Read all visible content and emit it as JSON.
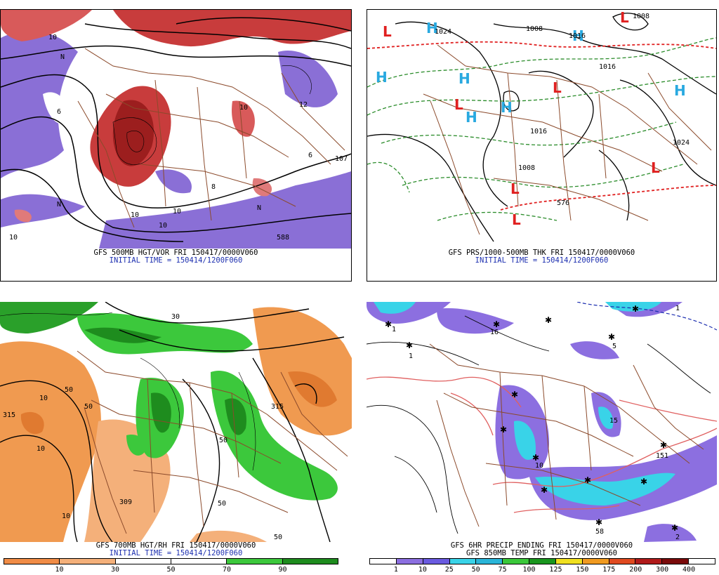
{
  "panels": {
    "top_left": {
      "caption_1": "GFS 500MB HGT/VOR FRI 150417/0000V060",
      "caption_2": "INITIAL TIME = 150414/1200F060",
      "labels": [
        "10",
        "6",
        "10",
        "12",
        "10",
        "10",
        "8",
        "6",
        "107",
        "588",
        "10",
        "N",
        "N",
        "N",
        "10"
      ]
    },
    "top_right": {
      "caption_1": "GFS PRS/1000-500MB THK FRI 150417/0000V060",
      "caption_2": "INITIAL TIME = 150414/1200F060",
      "labels": [
        "1024",
        "1008",
        "1016",
        "1016",
        "1024",
        "1008",
        "576",
        "1016",
        "1008"
      ]
    },
    "bottom_left": {
      "caption_1": "GFS 700MB HGT/RH FRI 150417/0000V060",
      "caption_2": "INITIAL TIME = 150414/1200F060",
      "labels": [
        "50",
        "315",
        "10",
        "10",
        "50",
        "10",
        "309",
        "50",
        "50",
        "30",
        "315",
        "50"
      ],
      "colorbar_ticks": [
        "10",
        "30",
        "50",
        "70",
        "90"
      ]
    },
    "bottom_right": {
      "caption_1": "GFS 6HR PRECIP ENDING FRI 150417/0000V060",
      "caption_2": "GFS 850MB TEMP FRI 150417/0000V060",
      "labels": [
        "1",
        "1",
        "5",
        "16",
        "151",
        "58",
        "1",
        "15",
        "2",
        "10"
      ],
      "colorbar_ticks": [
        "1",
        "10",
        "25",
        "50",
        "75",
        "100",
        "125",
        "150",
        "175",
        "200",
        "300",
        "400"
      ]
    }
  },
  "colors": {
    "vorticity_red": "#c83c3c",
    "vorticity_purple": "#8a6fd6",
    "rh_green": "#2aa02a",
    "rh_orange": "#f09a50",
    "precip_purple": "#8c6fe0",
    "precip_cyan": "#39d3e8",
    "border_brown": "#8b4a2b",
    "high_cyan": "#29a9e0",
    "low_red": "#e02020",
    "caption_blue": "#1d2fb0"
  },
  "rh_colorbar": [
    "#f08c46",
    "#f4b07a",
    "#ffffff",
    "#ffffff",
    "#3cc83c",
    "#1e8c1e"
  ],
  "precip_colorbar": [
    "#ffffff",
    "#8c6fe0",
    "#6a5be0",
    "#39d3e8",
    "#2ab5d8",
    "#3ac83a",
    "#19961e",
    "#f0e020",
    "#f09a20",
    "#e04a20",
    "#b01a1a",
    "#7a0a0a",
    "#ffffff"
  ]
}
